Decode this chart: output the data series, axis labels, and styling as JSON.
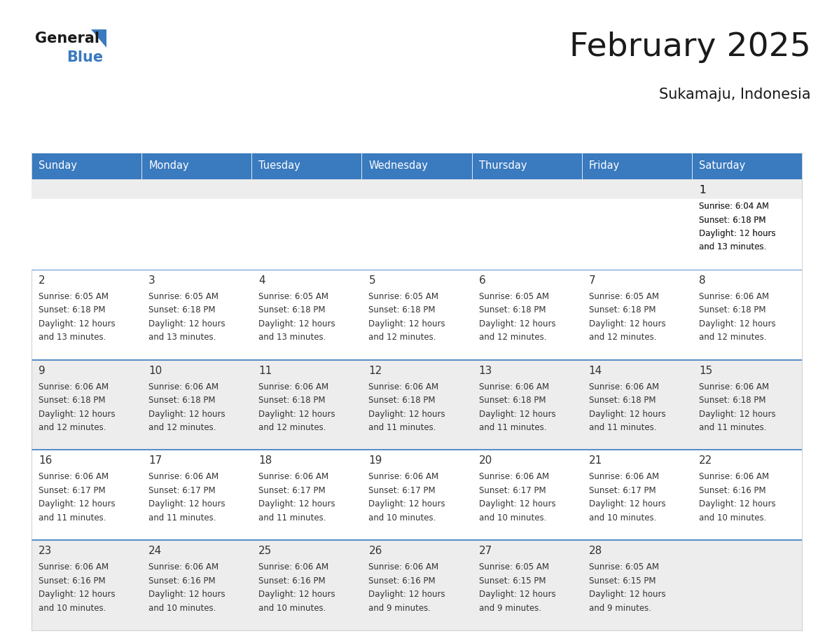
{
  "title": "February 2025",
  "subtitle": "Sukamaju, Indonesia",
  "header_bg": "#3a7abf",
  "header_text": "#ffffff",
  "row_bg_shaded": "#ededee",
  "row_bg_white": "#ffffff",
  "divider_color": "#3a7abf",
  "text_color": "#333333",
  "days_of_week": [
    "Sunday",
    "Monday",
    "Tuesday",
    "Wednesday",
    "Thursday",
    "Friday",
    "Saturday"
  ],
  "calendar": [
    [
      null,
      null,
      null,
      null,
      null,
      null,
      {
        "day": 1,
        "sunrise": "6:04 AM",
        "sunset": "6:18 PM",
        "daylight_line1": "Daylight: 12 hours",
        "daylight_line2": "and 13 minutes."
      }
    ],
    [
      {
        "day": 2,
        "sunrise": "6:05 AM",
        "sunset": "6:18 PM",
        "daylight_line1": "Daylight: 12 hours",
        "daylight_line2": "and 13 minutes."
      },
      {
        "day": 3,
        "sunrise": "6:05 AM",
        "sunset": "6:18 PM",
        "daylight_line1": "Daylight: 12 hours",
        "daylight_line2": "and 13 minutes."
      },
      {
        "day": 4,
        "sunrise": "6:05 AM",
        "sunset": "6:18 PM",
        "daylight_line1": "Daylight: 12 hours",
        "daylight_line2": "and 13 minutes."
      },
      {
        "day": 5,
        "sunrise": "6:05 AM",
        "sunset": "6:18 PM",
        "daylight_line1": "Daylight: 12 hours",
        "daylight_line2": "and 12 minutes."
      },
      {
        "day": 6,
        "sunrise": "6:05 AM",
        "sunset": "6:18 PM",
        "daylight_line1": "Daylight: 12 hours",
        "daylight_line2": "and 12 minutes."
      },
      {
        "day": 7,
        "sunrise": "6:05 AM",
        "sunset": "6:18 PM",
        "daylight_line1": "Daylight: 12 hours",
        "daylight_line2": "and 12 minutes."
      },
      {
        "day": 8,
        "sunrise": "6:06 AM",
        "sunset": "6:18 PM",
        "daylight_line1": "Daylight: 12 hours",
        "daylight_line2": "and 12 minutes."
      }
    ],
    [
      {
        "day": 9,
        "sunrise": "6:06 AM",
        "sunset": "6:18 PM",
        "daylight_line1": "Daylight: 12 hours",
        "daylight_line2": "and 12 minutes."
      },
      {
        "day": 10,
        "sunrise": "6:06 AM",
        "sunset": "6:18 PM",
        "daylight_line1": "Daylight: 12 hours",
        "daylight_line2": "and 12 minutes."
      },
      {
        "day": 11,
        "sunrise": "6:06 AM",
        "sunset": "6:18 PM",
        "daylight_line1": "Daylight: 12 hours",
        "daylight_line2": "and 12 minutes."
      },
      {
        "day": 12,
        "sunrise": "6:06 AM",
        "sunset": "6:18 PM",
        "daylight_line1": "Daylight: 12 hours",
        "daylight_line2": "and 11 minutes."
      },
      {
        "day": 13,
        "sunrise": "6:06 AM",
        "sunset": "6:18 PM",
        "daylight_line1": "Daylight: 12 hours",
        "daylight_line2": "and 11 minutes."
      },
      {
        "day": 14,
        "sunrise": "6:06 AM",
        "sunset": "6:18 PM",
        "daylight_line1": "Daylight: 12 hours",
        "daylight_line2": "and 11 minutes."
      },
      {
        "day": 15,
        "sunrise": "6:06 AM",
        "sunset": "6:18 PM",
        "daylight_line1": "Daylight: 12 hours",
        "daylight_line2": "and 11 minutes."
      }
    ],
    [
      {
        "day": 16,
        "sunrise": "6:06 AM",
        "sunset": "6:17 PM",
        "daylight_line1": "Daylight: 12 hours",
        "daylight_line2": "and 11 minutes."
      },
      {
        "day": 17,
        "sunrise": "6:06 AM",
        "sunset": "6:17 PM",
        "daylight_line1": "Daylight: 12 hours",
        "daylight_line2": "and 11 minutes."
      },
      {
        "day": 18,
        "sunrise": "6:06 AM",
        "sunset": "6:17 PM",
        "daylight_line1": "Daylight: 12 hours",
        "daylight_line2": "and 11 minutes."
      },
      {
        "day": 19,
        "sunrise": "6:06 AM",
        "sunset": "6:17 PM",
        "daylight_line1": "Daylight: 12 hours",
        "daylight_line2": "and 10 minutes."
      },
      {
        "day": 20,
        "sunrise": "6:06 AM",
        "sunset": "6:17 PM",
        "daylight_line1": "Daylight: 12 hours",
        "daylight_line2": "and 10 minutes."
      },
      {
        "day": 21,
        "sunrise": "6:06 AM",
        "sunset": "6:17 PM",
        "daylight_line1": "Daylight: 12 hours",
        "daylight_line2": "and 10 minutes."
      },
      {
        "day": 22,
        "sunrise": "6:06 AM",
        "sunset": "6:16 PM",
        "daylight_line1": "Daylight: 12 hours",
        "daylight_line2": "and 10 minutes."
      }
    ],
    [
      {
        "day": 23,
        "sunrise": "6:06 AM",
        "sunset": "6:16 PM",
        "daylight_line1": "Daylight: 12 hours",
        "daylight_line2": "and 10 minutes."
      },
      {
        "day": 24,
        "sunrise": "6:06 AM",
        "sunset": "6:16 PM",
        "daylight_line1": "Daylight: 12 hours",
        "daylight_line2": "and 10 minutes."
      },
      {
        "day": 25,
        "sunrise": "6:06 AM",
        "sunset": "6:16 PM",
        "daylight_line1": "Daylight: 12 hours",
        "daylight_line2": "and 10 minutes."
      },
      {
        "day": 26,
        "sunrise": "6:06 AM",
        "sunset": "6:16 PM",
        "daylight_line1": "Daylight: 12 hours",
        "daylight_line2": "and 9 minutes."
      },
      {
        "day": 27,
        "sunrise": "6:05 AM",
        "sunset": "6:15 PM",
        "daylight_line1": "Daylight: 12 hours",
        "daylight_line2": "and 9 minutes."
      },
      {
        "day": 28,
        "sunrise": "6:05 AM",
        "sunset": "6:15 PM",
        "daylight_line1": "Daylight: 12 hours",
        "daylight_line2": "and 9 minutes."
      },
      null
    ]
  ]
}
